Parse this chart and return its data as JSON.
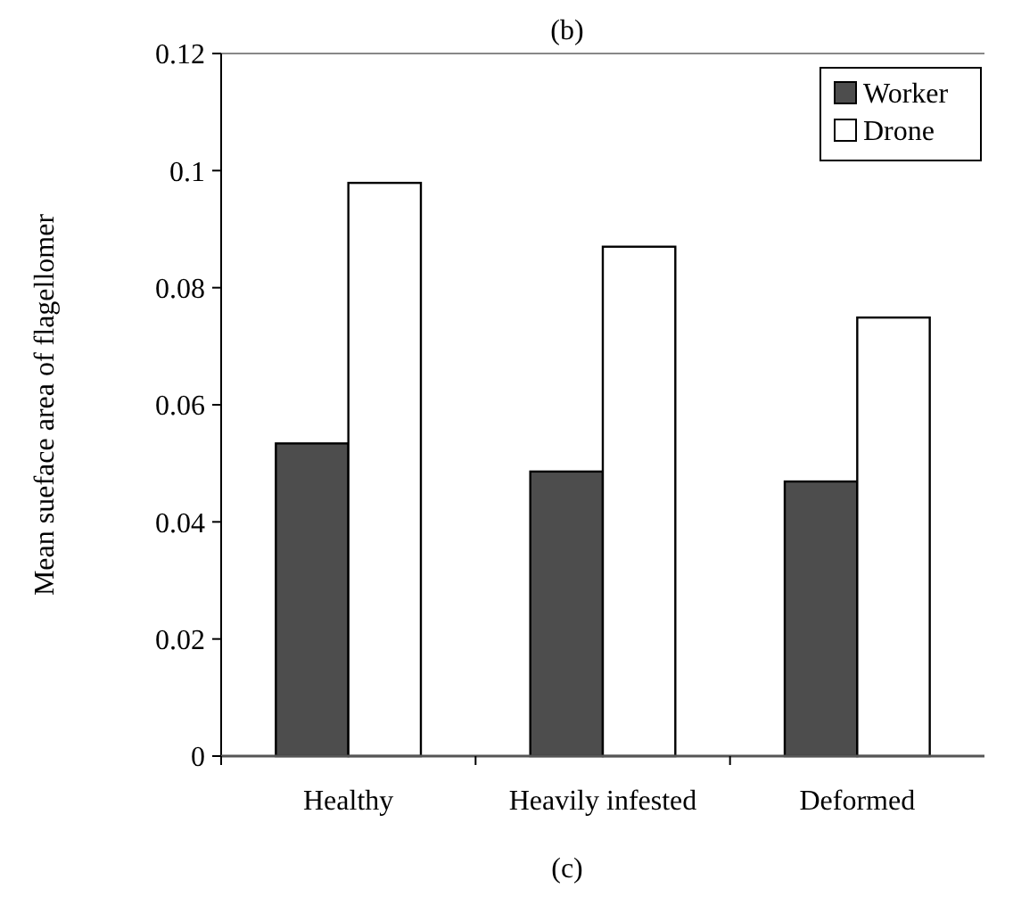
{
  "chart_data": {
    "type": "bar",
    "title": "(b)",
    "ylabel": "Mean sueface area of flagellomer",
    "categories": [
      "Healthy",
      "Heavily infested",
      "Deformed"
    ],
    "series": [
      {
        "name": "Worker",
        "color": "#4d4d4d",
        "values": [
          0.0534,
          0.0486,
          0.0469
        ]
      },
      {
        "name": "Drone",
        "color": "#ffffff",
        "values": [
          0.0979,
          0.087,
          0.0749
        ]
      }
    ],
    "ylim": [
      0,
      0.12
    ],
    "yticks": [
      0,
      0.02,
      0.04,
      0.06,
      0.08,
      0.1,
      0.12
    ],
    "legend": "top right",
    "grid": false,
    "annotations": [
      "(c)"
    ]
  }
}
